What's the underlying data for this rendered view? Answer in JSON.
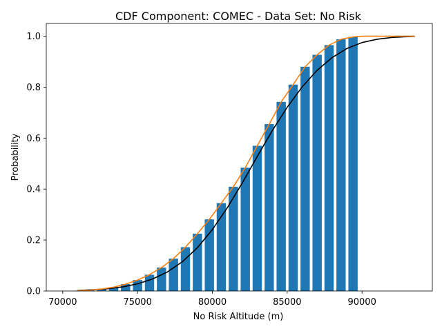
{
  "chart_data": {
    "type": "bar",
    "title": "CDF Component: COMEC - Data Set: No Risk",
    "xlabel": "No Risk Altitude (m)",
    "ylabel": "Probability",
    "xlim": [
      68900,
      94700
    ],
    "ylim": [
      0,
      1.05
    ],
    "x_ticks": [
      {
        "value": 70000,
        "label": "70000"
      },
      {
        "value": 75000,
        "label": "75000"
      },
      {
        "value": 80000,
        "label": "80000"
      },
      {
        "value": 85000,
        "label": "85000"
      },
      {
        "value": 90000,
        "label": "90000"
      }
    ],
    "y_ticks": [
      {
        "value": 0.0,
        "label": "0.0"
      },
      {
        "value": 0.2,
        "label": "0.2"
      },
      {
        "value": 0.4,
        "label": "0.4"
      },
      {
        "value": 0.6,
        "label": "0.6"
      },
      {
        "value": 0.8,
        "label": "0.8"
      },
      {
        "value": 1.0,
        "label": "1.0"
      }
    ],
    "bar_width": 620,
    "bars": {
      "color": "#1f77b4",
      "x": [
        71000,
        71800,
        72600,
        73400,
        74200,
        75000,
        75800,
        76600,
        77400,
        78200,
        79000,
        79800,
        80600,
        81400,
        82200,
        83000,
        83800,
        84600,
        85400,
        86200,
        87000,
        87800,
        88600,
        89400
      ],
      "values": [
        0.001,
        0.003,
        0.008,
        0.015,
        0.027,
        0.043,
        0.064,
        0.092,
        0.127,
        0.172,
        0.225,
        0.281,
        0.345,
        0.409,
        0.484,
        0.57,
        0.655,
        0.742,
        0.81,
        0.88,
        0.927,
        0.965,
        0.988,
        0.997
      ]
    },
    "series": [
      {
        "color": "#000000",
        "x": [
          71000,
          72000,
          73000,
          74000,
          75000,
          76000,
          77000,
          78000,
          79000,
          80000,
          81000,
          82000,
          83000,
          84000,
          85000,
          86000,
          87000,
          88000,
          89000,
          90000,
          91000,
          92000,
          93000,
          93500
        ],
        "values": [
          0.002,
          0.005,
          0.009,
          0.016,
          0.028,
          0.047,
          0.075,
          0.115,
          0.17,
          0.241,
          0.327,
          0.424,
          0.528,
          0.629,
          0.721,
          0.801,
          0.866,
          0.916,
          0.952,
          0.975,
          0.988,
          0.995,
          0.998,
          0.999
        ]
      },
      {
        "color": "#ff7f0e",
        "x": [
          71000,
          71800,
          72600,
          73400,
          74200,
          75000,
          75800,
          76600,
          77400,
          78200,
          79000,
          79800,
          80600,
          81400,
          82200,
          83000,
          83800,
          84600,
          85400,
          86200,
          87000,
          87800,
          88600,
          89400,
          89800,
          90200,
          91000,
          92000,
          93500
        ],
        "values": [
          0.001,
          0.003,
          0.008,
          0.015,
          0.027,
          0.043,
          0.064,
          0.092,
          0.127,
          0.172,
          0.225,
          0.281,
          0.345,
          0.409,
          0.484,
          0.57,
          0.655,
          0.742,
          0.81,
          0.88,
          0.927,
          0.965,
          0.988,
          0.997,
          0.999,
          1.0,
          1.0,
          1.0,
          1.0
        ]
      }
    ]
  }
}
